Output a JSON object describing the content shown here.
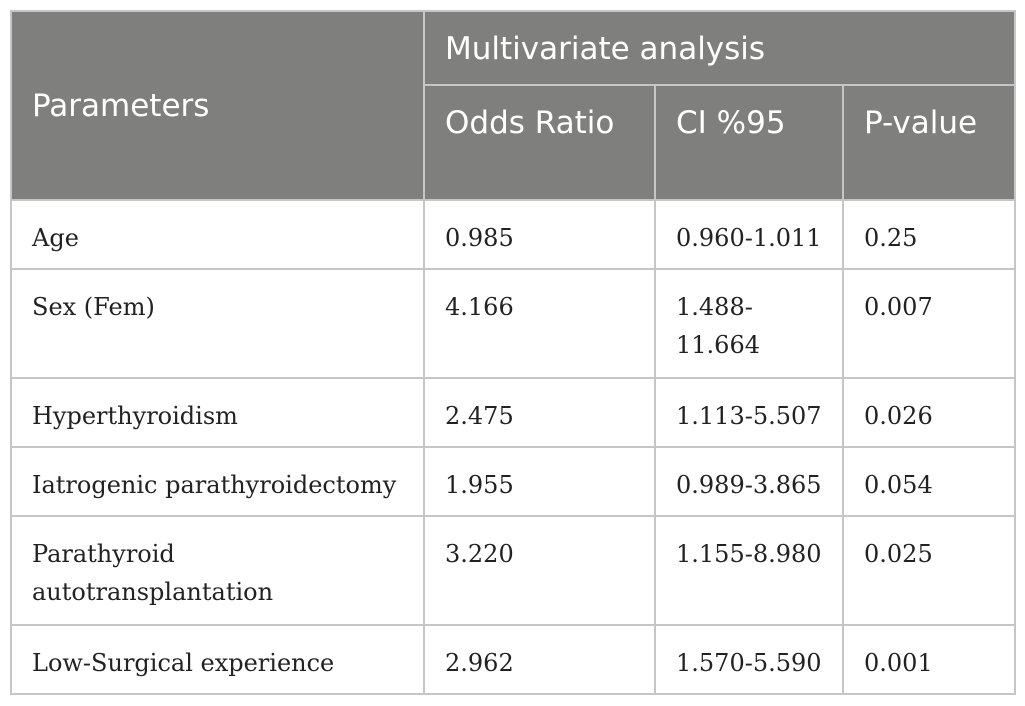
{
  "table": {
    "header": {
      "parameters": "Parameters",
      "group": "Multivariate analysis",
      "odds_ratio": "Odds Ratio",
      "ci": "CI %95",
      "p_value": "P-value"
    },
    "rows": [
      {
        "parameter": "Age",
        "odds_ratio": "0.985",
        "ci": "0.960-1.011",
        "p_value": "0.25"
      },
      {
        "parameter": "Sex (Fem)",
        "odds_ratio": "4.166",
        "ci": "1.488-11.664",
        "p_value": "0.007"
      },
      {
        "parameter": "Hyperthyroidism",
        "odds_ratio": "2.475",
        "ci": "1.113-5.507",
        "p_value": "0.026"
      },
      {
        "parameter": "Iatrogenic parathyroidectomy",
        "odds_ratio": "1.955",
        "ci": "0.989-3.865",
        "p_value": "0.054"
      },
      {
        "parameter": "Parathyroid autotransplantation",
        "odds_ratio": "3.220",
        "ci": "1.155-8.980",
        "p_value": "0.025"
      },
      {
        "parameter": "Low-Surgical experience",
        "odds_ratio": "2.962",
        "ci": "1.570-5.590",
        "p_value": "0.001"
      }
    ]
  }
}
